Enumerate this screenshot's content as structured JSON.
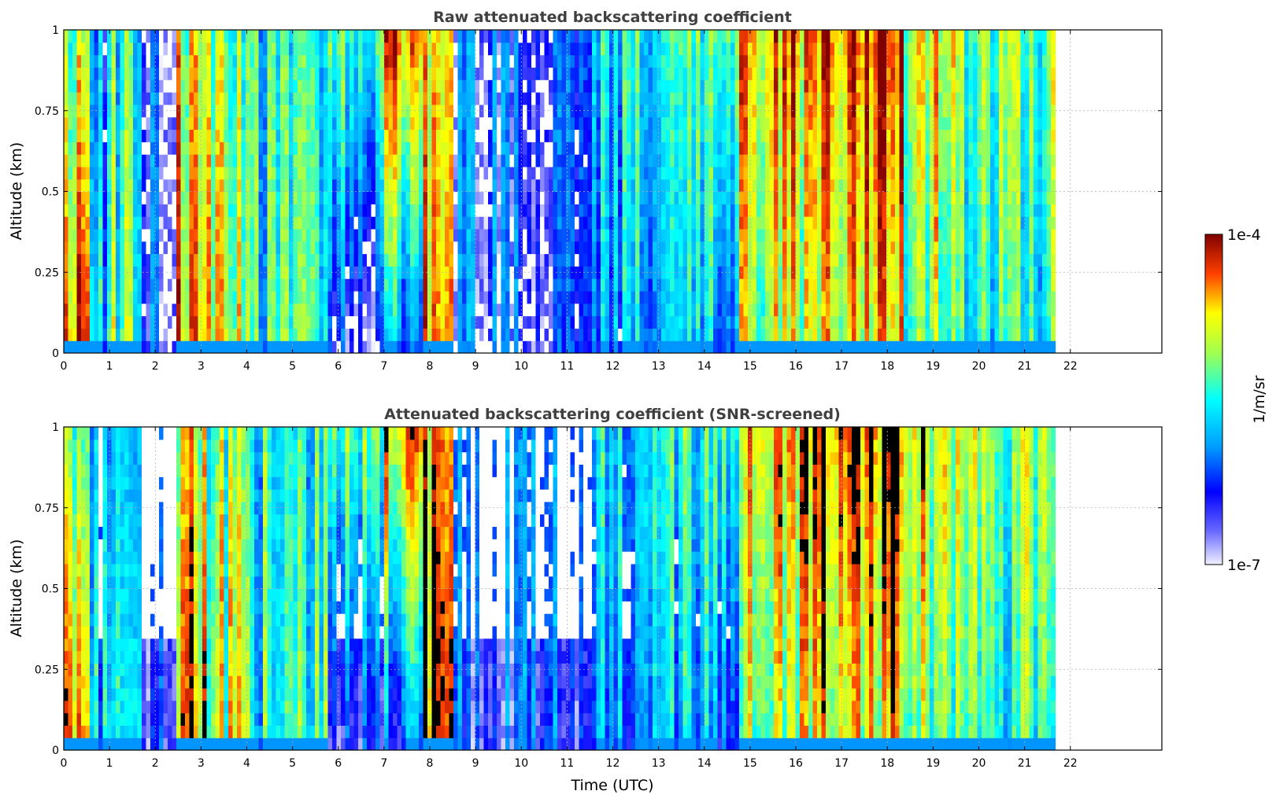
{
  "chart_data": [
    {
      "type": "heatmap",
      "title": "Raw attenuated backscattering coefficient",
      "xlabel": "",
      "ylabel": "Altitude (km)",
      "xlim": [
        0,
        24
      ],
      "ylim": [
        0,
        1
      ],
      "xticks": [
        "0",
        "1",
        "2",
        "3",
        "4",
        "5",
        "6",
        "7",
        "8",
        "9",
        "10",
        "11",
        "12",
        "13",
        "14",
        "15",
        "16",
        "17",
        "18",
        "19",
        "20",
        "21",
        "22"
      ],
      "yticks": [
        "0",
        "0.25",
        "0.5",
        "0.75",
        "1"
      ],
      "data_end_hour": 21.6,
      "grid": true,
      "colormap": "jet",
      "color_scale": "log",
      "clim": [
        1e-07,
        0.0001
      ],
      "screened": false
    },
    {
      "type": "heatmap",
      "title": "Attenuated backscattering coefficient (SNR-screened)",
      "xlabel": "Time (UTC)",
      "ylabel": "Altitude (km)",
      "xlim": [
        0,
        24
      ],
      "ylim": [
        0,
        1
      ],
      "xticks": [
        "0",
        "1",
        "2",
        "3",
        "4",
        "5",
        "6",
        "7",
        "8",
        "9",
        "10",
        "11",
        "12",
        "13",
        "14",
        "15",
        "16",
        "17",
        "18",
        "19",
        "20",
        "21",
        "22"
      ],
      "yticks": [
        "0",
        "0.25",
        "0.5",
        "0.75",
        "1"
      ],
      "data_end_hour": 21.6,
      "grid": true,
      "colormap": "jet",
      "color_scale": "log",
      "clim": [
        1e-07,
        0.0001
      ],
      "screened": true
    }
  ],
  "colorbar": {
    "label": "1/m/sr",
    "max_label": "1e-4",
    "min_label": "1e-7"
  }
}
